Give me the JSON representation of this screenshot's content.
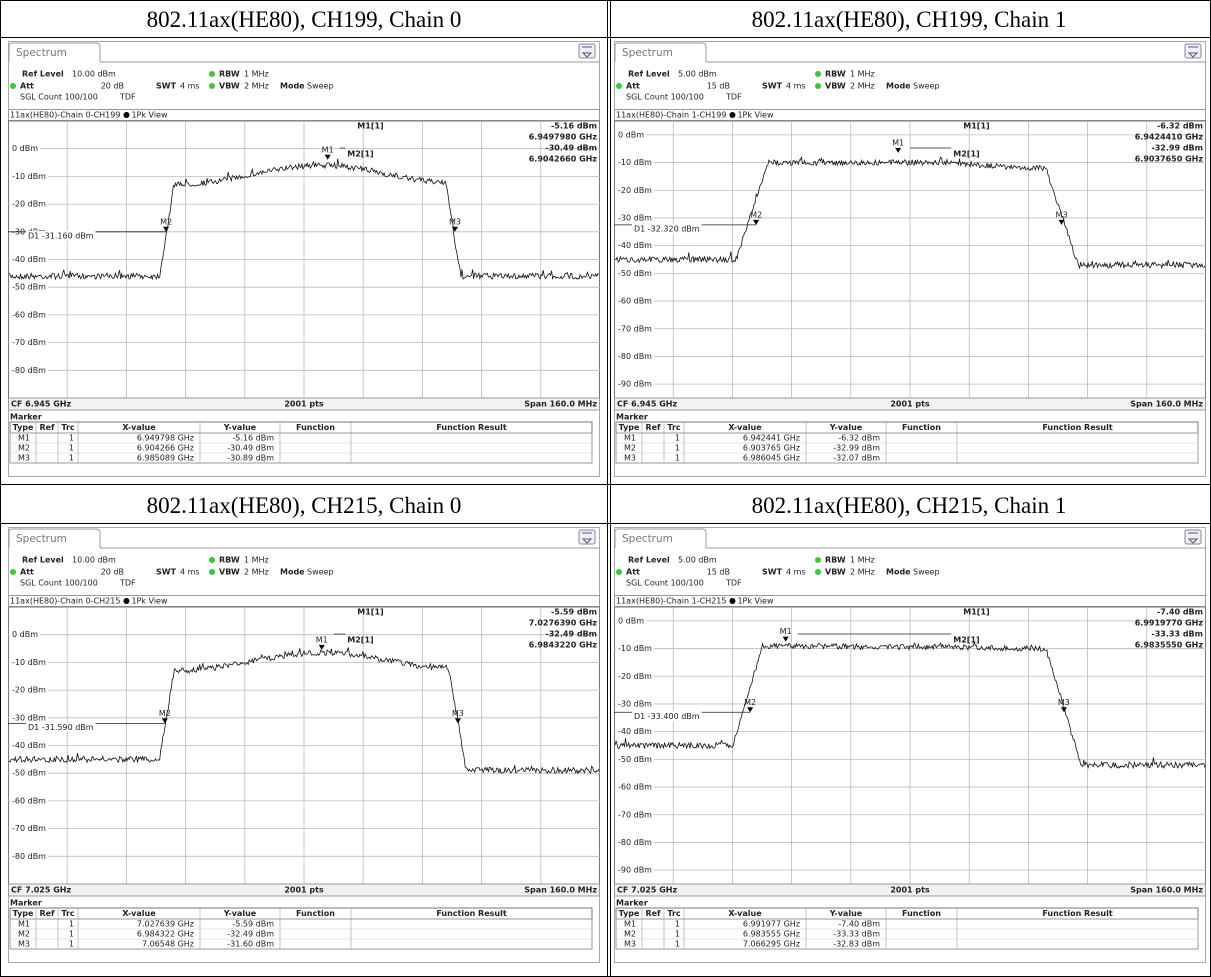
{
  "labels": {
    "tab": "Spectrum",
    "ref_level": "Ref Level",
    "att": "Att",
    "swt": "SWT",
    "rbw": "RBW",
    "vbw": "VBW",
    "mode": "Mode",
    "marker_title": "Marker",
    "columns": [
      "Type",
      "Ref",
      "Trc",
      "X-value",
      "Y-value",
      "Function",
      "Function Result"
    ]
  },
  "panels": [
    {
      "title": "802.11ax(HE80), CH199, Chain 0",
      "ref_level": "10.00 dBm",
      "att": "20 dB",
      "swt": "4 ms",
      "rbw": "1 MHz",
      "vbw": "2 MHz",
      "mode": "Sweep",
      "sgl_count": "SGL Count 100/100",
      "tdf": "TDF",
      "trace_title": "11ax(HE80)-Chain 0-CH199",
      "view": "1Pk View",
      "y_labels": [
        "0 dBm",
        "-10 dBm",
        "-20 dBm",
        "-30 dBm",
        "-40 dBm",
        "-50 dBm",
        "-60 dBm",
        "-70 dBm",
        "-80 dBm"
      ],
      "readout": [
        {
          "name": "M1[1]",
          "level": "-5.16 dBm",
          "freq": "6.9497980 GHz"
        },
        {
          "name": "M2[1]",
          "level": "-30.49 dBm",
          "freq": "6.9042660 GHz"
        }
      ],
      "d1": "D1 -31.160 dBm",
      "cf": "CF 6.945 GHz",
      "points": "2001 pts",
      "span": "Span 160.0 MHz",
      "markers": [
        {
          "type": "M1",
          "trc": 1,
          "x": "6.949798 GHz",
          "y": "-5.16 dBm"
        },
        {
          "type": "M2",
          "trc": 1,
          "x": "6.904266 GHz",
          "y": "-30.49 dBm"
        },
        {
          "type": "M3",
          "trc": 1,
          "x": "6.985089 GHz",
          "y": "-30.89 dBm"
        }
      ]
    },
    {
      "title": "802.11ax(HE80), CH199, Chain 1",
      "ref_level": "5.00 dBm",
      "att": "15 dB",
      "swt": "4 ms",
      "rbw": "1 MHz",
      "vbw": "2 MHz",
      "mode": "Sweep",
      "sgl_count": "SGL Count 100/100",
      "tdf": "TDF",
      "trace_title": "11ax(HE80)-Chain 1-CH199",
      "view": "1Pk View",
      "y_labels": [
        "0 dBm",
        "-10 dBm",
        "-20 dBm",
        "-30 dBm",
        "-40 dBm",
        "-50 dBm",
        "-60 dBm",
        "-70 dBm",
        "-80 dBm",
        "-90 dBm"
      ],
      "readout": [
        {
          "name": "M1[1]",
          "level": "-6.32 dBm",
          "freq": "6.9424410 GHz"
        },
        {
          "name": "M2[1]",
          "level": "-32.99 dBm",
          "freq": "6.9037650 GHz"
        }
      ],
      "d1": "D1 -32.320 dBm",
      "cf": "CF 6.945 GHz",
      "points": "2001 pts",
      "span": "Span 160.0 MHz",
      "markers": [
        {
          "type": "M1",
          "trc": 1,
          "x": "6.942441 GHz",
          "y": "-6.32 dBm"
        },
        {
          "type": "M2",
          "trc": 1,
          "x": "6.903765 GHz",
          "y": "-32.99 dBm"
        },
        {
          "type": "M3",
          "trc": 1,
          "x": "6.986045 GHz",
          "y": "-32.07 dBm"
        }
      ]
    },
    {
      "title": "802.11ax(HE80), CH215, Chain 0",
      "ref_level": "10.00 dBm",
      "att": "20 dB",
      "swt": "4 ms",
      "rbw": "1 MHz",
      "vbw": "2 MHz",
      "mode": "Sweep",
      "sgl_count": "SGL Count 100/100",
      "tdf": "TDF",
      "trace_title": "11ax(HE80)-Chain 0-CH215",
      "view": "1Pk View",
      "y_labels": [
        "0 dBm",
        "-10 dBm",
        "-20 dBm",
        "-30 dBm",
        "-40 dBm",
        "-50 dBm",
        "-60 dBm",
        "-70 dBm",
        "-80 dBm"
      ],
      "readout": [
        {
          "name": "M1[1]",
          "level": "-5.59 dBm",
          "freq": "7.0276390 GHz"
        },
        {
          "name": "M2[1]",
          "level": "-32.49 dBm",
          "freq": "6.9843220 GHz"
        }
      ],
      "d1": "D1 -31.590 dBm",
      "cf": "CF 7.025 GHz",
      "points": "2001 pts",
      "span": "Span 160.0 MHz",
      "markers": [
        {
          "type": "M1",
          "trc": 1,
          "x": "7.027639 GHz",
          "y": "-5.59 dBm"
        },
        {
          "type": "M2",
          "trc": 1,
          "x": "6.984322 GHz",
          "y": "-32.49 dBm"
        },
        {
          "type": "M3",
          "trc": 1,
          "x": "7.06548 GHz",
          "y": "-31.60 dBm"
        }
      ]
    },
    {
      "title": "802.11ax(HE80), CH215, Chain 1",
      "ref_level": "5.00 dBm",
      "att": "15 dB",
      "swt": "4 ms",
      "rbw": "1 MHz",
      "vbw": "2 MHz",
      "mode": "Sweep",
      "sgl_count": "SGL Count 100/100",
      "tdf": "TDF",
      "trace_title": "11ax(HE80)-Chain 1-CH215",
      "view": "1Pk View",
      "y_labels": [
        "0 dBm",
        "-10 dBm",
        "-20 dBm",
        "-30 dBm",
        "-40 dBm",
        "-50 dBm",
        "-60 dBm",
        "-70 dBm",
        "-80 dBm",
        "-90 dBm"
      ],
      "readout": [
        {
          "name": "M1[1]",
          "level": "-7.40 dBm",
          "freq": "6.9919770 GHz"
        },
        {
          "name": "M2[1]",
          "level": "-33.33 dBm",
          "freq": "6.9835550 GHz"
        }
      ],
      "d1": "D1 -33.400 dBm",
      "cf": "CF 7.025 GHz",
      "points": "2001 pts",
      "span": "Span 160.0 MHz",
      "markers": [
        {
          "type": "M1",
          "trc": 1,
          "x": "6.991977 GHz",
          "y": "-7.40 dBm"
        },
        {
          "type": "M2",
          "trc": 1,
          "x": "6.983555 GHz",
          "y": "-33.33 dBm"
        },
        {
          "type": "M3",
          "trc": 1,
          "x": "7.066295 GHz",
          "y": "-32.83 dBm"
        }
      ]
    }
  ]
}
